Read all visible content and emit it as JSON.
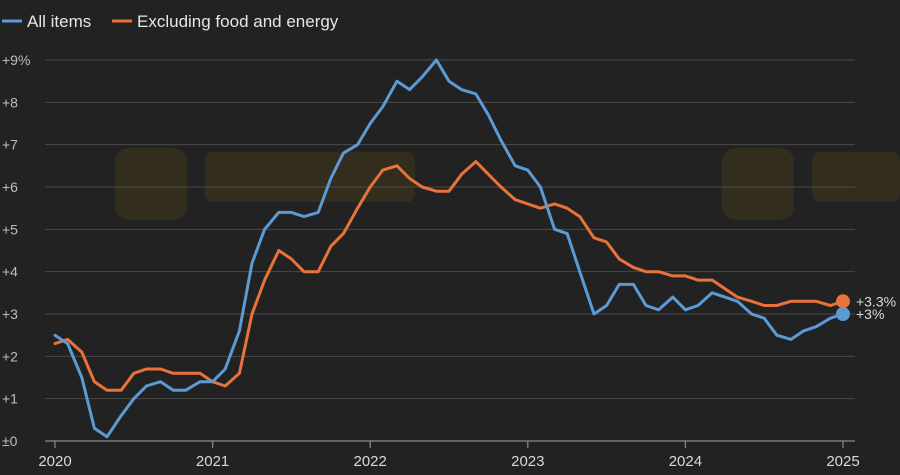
{
  "chart_data": {
    "type": "line",
    "x_labels": [
      "2020",
      "2021",
      "2022",
      "2023",
      "2024",
      "2025"
    ],
    "ylim": [
      0,
      9
    ],
    "y_ticks": [
      {
        "value": 0,
        "label": "±0"
      },
      {
        "value": 1,
        "label": "+1"
      },
      {
        "value": 2,
        "label": "+2"
      },
      {
        "value": 3,
        "label": "+3"
      },
      {
        "value": 4,
        "label": "+4"
      },
      {
        "value": 5,
        "label": "+5"
      },
      {
        "value": 6,
        "label": "+6"
      },
      {
        "value": 7,
        "label": "+7"
      },
      {
        "value": 8,
        "label": "+8"
      },
      {
        "value": 9,
        "label": "+9%"
      }
    ],
    "grid": true,
    "legend": "top-left",
    "series": [
      {
        "name": "All items",
        "color": "#5b9bd5",
        "end_label": "+3%",
        "values": [
          [
            2020.0,
            2.5
          ],
          [
            2020.08,
            2.3
          ],
          [
            2020.17,
            1.5
          ],
          [
            2020.25,
            0.3
          ],
          [
            2020.33,
            0.1
          ],
          [
            2020.42,
            0.6
          ],
          [
            2020.5,
            1.0
          ],
          [
            2020.58,
            1.3
          ],
          [
            2020.67,
            1.4
          ],
          [
            2020.75,
            1.2
          ],
          [
            2020.83,
            1.2
          ],
          [
            2020.92,
            1.4
          ],
          [
            2021.0,
            1.4
          ],
          [
            2021.08,
            1.7
          ],
          [
            2021.17,
            2.6
          ],
          [
            2021.25,
            4.2
          ],
          [
            2021.33,
            5.0
          ],
          [
            2021.42,
            5.4
          ],
          [
            2021.5,
            5.4
          ],
          [
            2021.58,
            5.3
          ],
          [
            2021.67,
            5.4
          ],
          [
            2021.75,
            6.2
          ],
          [
            2021.83,
            6.8
          ],
          [
            2021.92,
            7.0
          ],
          [
            2022.0,
            7.5
          ],
          [
            2022.08,
            7.9
          ],
          [
            2022.17,
            8.5
          ],
          [
            2022.25,
            8.3
          ],
          [
            2022.33,
            8.6
          ],
          [
            2022.42,
            9.0
          ],
          [
            2022.5,
            8.5
          ],
          [
            2022.58,
            8.3
          ],
          [
            2022.67,
            8.2
          ],
          [
            2022.75,
            7.7
          ],
          [
            2022.83,
            7.1
          ],
          [
            2022.92,
            6.5
          ],
          [
            2023.0,
            6.4
          ],
          [
            2023.08,
            6.0
          ],
          [
            2023.17,
            5.0
          ],
          [
            2023.25,
            4.9
          ],
          [
            2023.33,
            4.0
          ],
          [
            2023.42,
            3.0
          ],
          [
            2023.5,
            3.2
          ],
          [
            2023.58,
            3.7
          ],
          [
            2023.67,
            3.7
          ],
          [
            2023.75,
            3.2
          ],
          [
            2023.83,
            3.1
          ],
          [
            2023.92,
            3.4
          ],
          [
            2024.0,
            3.1
          ],
          [
            2024.08,
            3.2
          ],
          [
            2024.17,
            3.5
          ],
          [
            2024.25,
            3.4
          ],
          [
            2024.33,
            3.3
          ],
          [
            2024.42,
            3.0
          ],
          [
            2024.5,
            2.9
          ],
          [
            2024.58,
            2.5
          ],
          [
            2024.67,
            2.4
          ],
          [
            2024.75,
            2.6
          ],
          [
            2024.83,
            2.7
          ],
          [
            2024.92,
            2.9
          ],
          [
            2025.0,
            3.0
          ]
        ]
      },
      {
        "name": "Excluding food and energy",
        "color": "#e8733a",
        "end_label": "+3.3%",
        "values": [
          [
            2020.0,
            2.3
          ],
          [
            2020.08,
            2.4
          ],
          [
            2020.17,
            2.1
          ],
          [
            2020.25,
            1.4
          ],
          [
            2020.33,
            1.2
          ],
          [
            2020.42,
            1.2
          ],
          [
            2020.5,
            1.6
          ],
          [
            2020.58,
            1.7
          ],
          [
            2020.67,
            1.7
          ],
          [
            2020.75,
            1.6
          ],
          [
            2020.83,
            1.6
          ],
          [
            2020.92,
            1.6
          ],
          [
            2021.0,
            1.4
          ],
          [
            2021.08,
            1.3
          ],
          [
            2021.17,
            1.6
          ],
          [
            2021.25,
            3.0
          ],
          [
            2021.33,
            3.8
          ],
          [
            2021.42,
            4.5
          ],
          [
            2021.5,
            4.3
          ],
          [
            2021.58,
            4.0
          ],
          [
            2021.67,
            4.0
          ],
          [
            2021.75,
            4.6
          ],
          [
            2021.83,
            4.9
          ],
          [
            2021.92,
            5.5
          ],
          [
            2022.0,
            6.0
          ],
          [
            2022.08,
            6.4
          ],
          [
            2022.17,
            6.5
          ],
          [
            2022.25,
            6.2
          ],
          [
            2022.33,
            6.0
          ],
          [
            2022.42,
            5.9
          ],
          [
            2022.5,
            5.9
          ],
          [
            2022.58,
            6.3
          ],
          [
            2022.67,
            6.6
          ],
          [
            2022.75,
            6.3
          ],
          [
            2022.83,
            6.0
          ],
          [
            2022.92,
            5.7
          ],
          [
            2023.0,
            5.6
          ],
          [
            2023.08,
            5.5
          ],
          [
            2023.17,
            5.6
          ],
          [
            2023.25,
            5.5
          ],
          [
            2023.33,
            5.3
          ],
          [
            2023.42,
            4.8
          ],
          [
            2023.5,
            4.7
          ],
          [
            2023.58,
            4.3
          ],
          [
            2023.67,
            4.1
          ],
          [
            2023.75,
            4.0
          ],
          [
            2023.83,
            4.0
          ],
          [
            2023.92,
            3.9
          ],
          [
            2024.0,
            3.9
          ],
          [
            2024.08,
            3.8
          ],
          [
            2024.17,
            3.8
          ],
          [
            2024.25,
            3.6
          ],
          [
            2024.33,
            3.4
          ],
          [
            2024.42,
            3.3
          ],
          [
            2024.5,
            3.2
          ],
          [
            2024.58,
            3.2
          ],
          [
            2024.67,
            3.3
          ],
          [
            2024.75,
            3.3
          ],
          [
            2024.83,
            3.3
          ],
          [
            2024.92,
            3.2
          ],
          [
            2025.0,
            3.3
          ]
        ]
      }
    ]
  }
}
